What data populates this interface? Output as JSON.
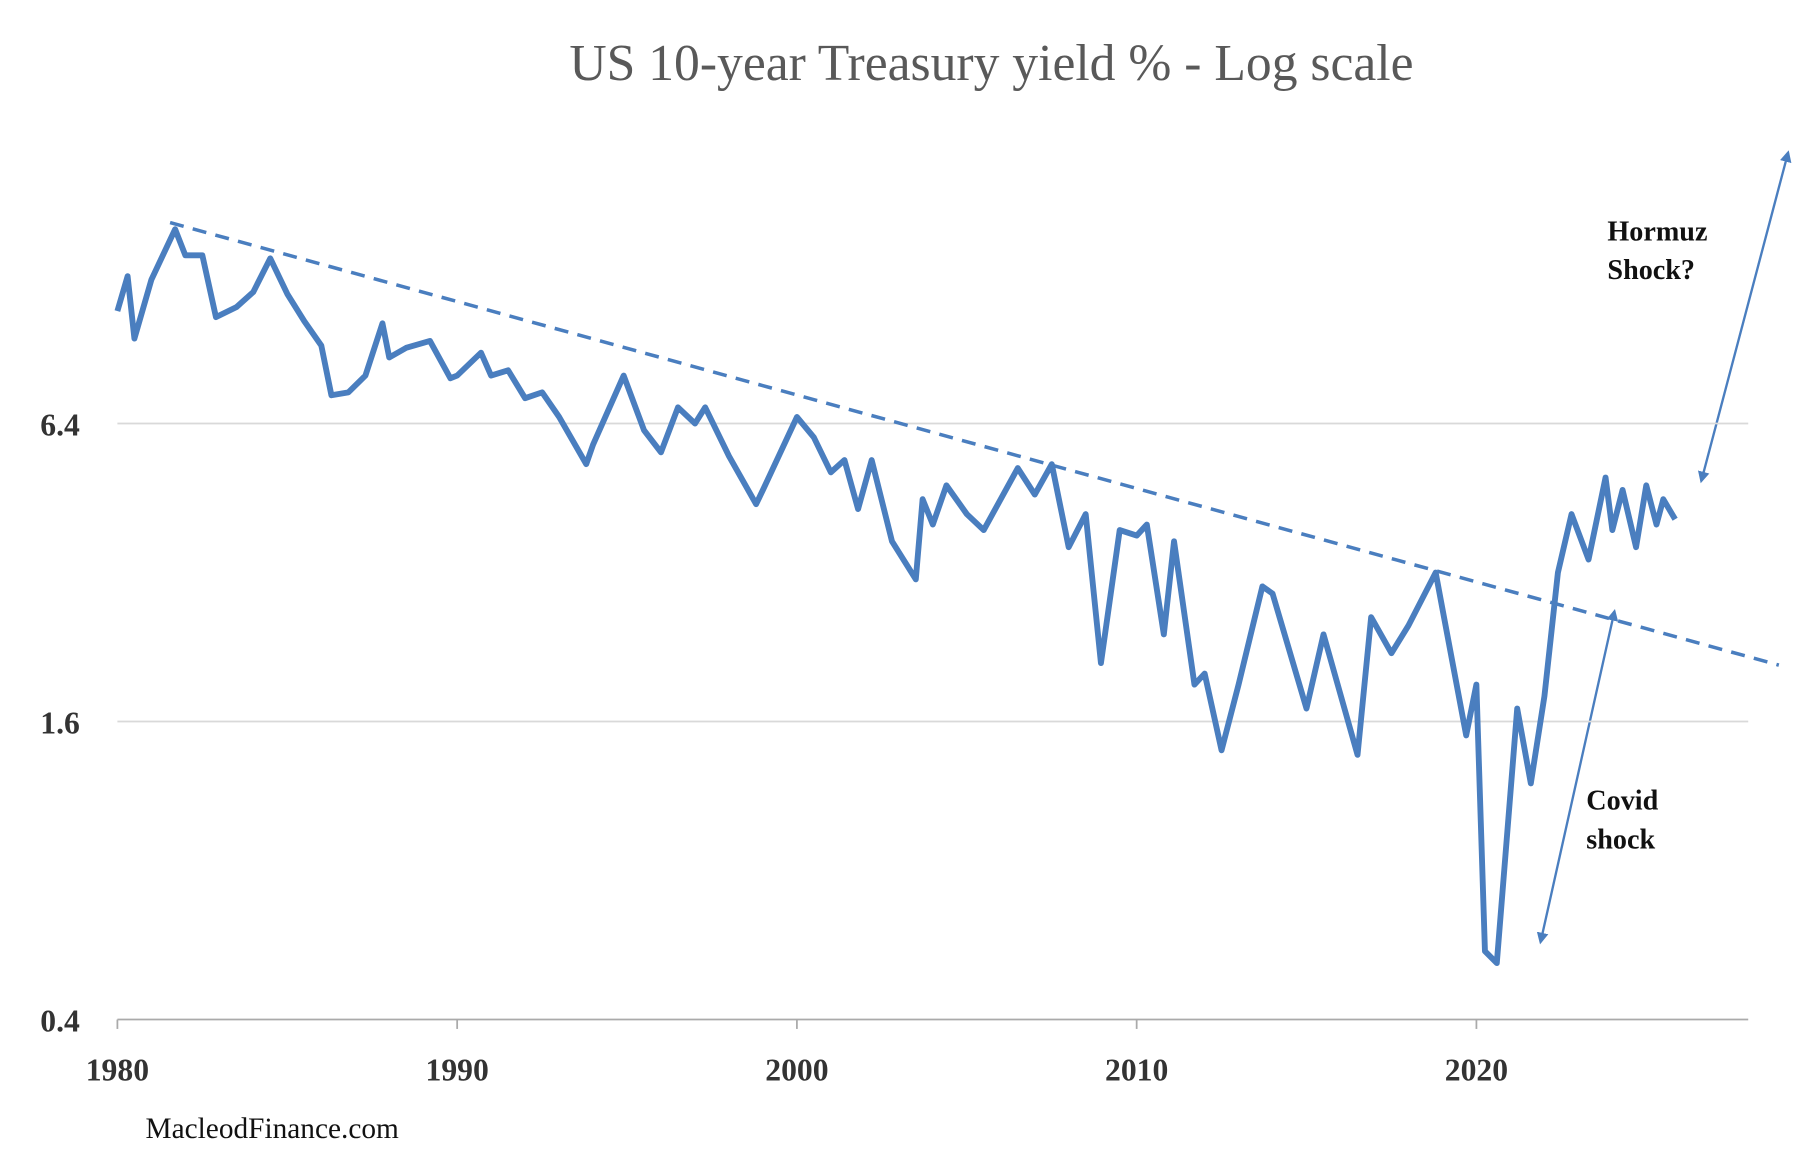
{
  "chart_data": {
    "type": "line",
    "title": "US 10-year Treasury yield % - Log scale",
    "log_scale": true,
    "grid": true,
    "xlim": [
      1980,
      2028
    ],
    "xticks": [
      1980,
      1990,
      2000,
      2010,
      2020
    ],
    "ylim": [
      0.4,
      25.6
    ],
    "yticks": [
      0.4,
      1.6,
      6.4
    ],
    "series": [
      {
        "name": "US 10-year Treasury yield",
        "color": "#4a7ebf",
        "x": [
          1980.0,
          1980.3,
          1980.5,
          1981.0,
          1981.7,
          1982.0,
          1982.5,
          1982.9,
          1983.5,
          1984.0,
          1984.5,
          1985.0,
          1985.5,
          1986.0,
          1986.3,
          1986.8,
          1987.3,
          1987.8,
          1988.0,
          1988.5,
          1989.2,
          1989.8,
          1990.0,
          1990.7,
          1991.0,
          1991.5,
          1992.0,
          1992.5,
          1993.0,
          1993.8,
          1994.0,
          1994.9,
          1995.5,
          1996.0,
          1996.5,
          1997.0,
          1997.3,
          1998.0,
          1998.8,
          1999.0,
          2000.0,
          2000.5,
          2001.0,
          2001.4,
          2001.8,
          2002.2,
          2002.8,
          2003.5,
          2003.7,
          2004.0,
          2004.4,
          2005.0,
          2005.5,
          2006.5,
          2007.0,
          2007.5,
          2008.0,
          2008.5,
          2008.95,
          2009.5,
          2010.0,
          2010.3,
          2010.8,
          2011.1,
          2011.7,
          2012.0,
          2012.5,
          2013.0,
          2013.7,
          2014.0,
          2015.0,
          2015.5,
          2016.5,
          2016.9,
          2017.5,
          2018.0,
          2018.8,
          2019.0,
          2019.7,
          2020.0,
          2020.25,
          2020.6,
          2021.2,
          2021.6,
          2022.0,
          2022.4,
          2022.8,
          2023.3,
          2023.8,
          2024.0,
          2024.3,
          2024.7,
          2025.0,
          2025.3,
          2025.5,
          2025.85
        ],
        "values": [
          10.8,
          12.7,
          9.5,
          12.5,
          15.8,
          14.0,
          14.0,
          10.5,
          11.0,
          11.8,
          13.8,
          11.7,
          10.3,
          9.2,
          7.3,
          7.4,
          8.0,
          10.2,
          8.7,
          9.1,
          9.4,
          7.9,
          8.0,
          8.9,
          8.0,
          8.2,
          7.2,
          7.4,
          6.6,
          5.3,
          5.8,
          8.0,
          6.2,
          5.6,
          6.9,
          6.4,
          6.9,
          5.5,
          4.4,
          4.7,
          6.6,
          6.0,
          5.1,
          5.4,
          4.3,
          5.4,
          3.7,
          3.1,
          4.5,
          4.0,
          4.8,
          4.2,
          3.9,
          5.2,
          4.6,
          5.3,
          3.6,
          4.2,
          2.1,
          3.9,
          3.8,
          4.0,
          2.4,
          3.7,
          1.9,
          2.0,
          1.4,
          1.9,
          3.0,
          2.9,
          1.7,
          2.4,
          1.37,
          2.6,
          2.2,
          2.5,
          3.2,
          2.7,
          1.5,
          1.9,
          0.55,
          0.52,
          1.7,
          1.2,
          1.8,
          3.2,
          4.2,
          3.4,
          4.98,
          3.9,
          4.7,
          3.6,
          4.8,
          4.0,
          4.5,
          4.1
        ]
      },
      {
        "color": "#4a7ebf",
        "style": "dashed",
        "x": [
          1981.55,
          2028.9
        ],
        "values": [
          16.3,
          2.08
        ]
      }
    ],
    "annotations": [
      {
        "lines": [
          "Hormuz",
          "Shock?"
        ]
      },
      {
        "lines": [
          "Covid",
          "shock"
        ]
      }
    ],
    "source": "MacleodFinance.com"
  }
}
